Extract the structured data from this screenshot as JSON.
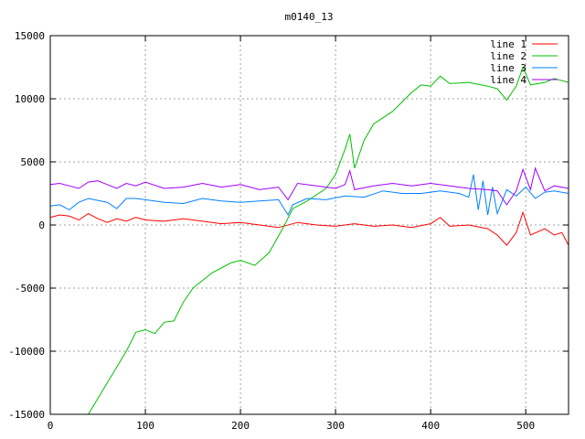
{
  "chart_data": {
    "type": "line",
    "title": "m0140_13",
    "xlabel": "",
    "ylabel": "",
    "xlim": [
      0,
      545
    ],
    "ylim": [
      -15000,
      15000
    ],
    "grid": true,
    "legend_position": "top-right",
    "x_ticks": [
      0,
      100,
      200,
      300,
      400,
      500
    ],
    "y_ticks": [
      -15000,
      -10000,
      -5000,
      0,
      5000,
      10000,
      15000
    ],
    "x_tick_labels": [
      "0",
      "100",
      "200",
      "300",
      "400",
      "500"
    ],
    "y_tick_labels": [
      "-15000",
      "-10000",
      "-5000",
      "0",
      "5000",
      "10000",
      "15000"
    ],
    "series": [
      {
        "name": "line 1",
        "color": "#ff0000",
        "points": [
          [
            0,
            600
          ],
          [
            10,
            800
          ],
          [
            20,
            700
          ],
          [
            30,
            400
          ],
          [
            40,
            900
          ],
          [
            50,
            500
          ],
          [
            60,
            200
          ],
          [
            70,
            500
          ],
          [
            80,
            300
          ],
          [
            90,
            600
          ],
          [
            100,
            400
          ],
          [
            120,
            300
          ],
          [
            140,
            500
          ],
          [
            160,
            300
          ],
          [
            180,
            100
          ],
          [
            200,
            200
          ],
          [
            220,
            0
          ],
          [
            240,
            -200
          ],
          [
            260,
            200
          ],
          [
            280,
            0
          ],
          [
            300,
            -100
          ],
          [
            320,
            100
          ],
          [
            340,
            -100
          ],
          [
            360,
            0
          ],
          [
            380,
            -200
          ],
          [
            400,
            100
          ],
          [
            410,
            600
          ],
          [
            420,
            -100
          ],
          [
            440,
            0
          ],
          [
            460,
            -300
          ],
          [
            470,
            -800
          ],
          [
            480,
            -1600
          ],
          [
            490,
            -600
          ],
          [
            497,
            1000
          ],
          [
            505,
            -800
          ],
          [
            520,
            -300
          ],
          [
            530,
            -800
          ],
          [
            538,
            -600
          ],
          [
            545,
            -1600
          ]
        ]
      },
      {
        "name": "line 2",
        "color": "#00c000",
        "points": [
          [
            40,
            -15000
          ],
          [
            60,
            -12500
          ],
          [
            80,
            -10000
          ],
          [
            90,
            -8500
          ],
          [
            100,
            -8300
          ],
          [
            110,
            -8600
          ],
          [
            120,
            -7700
          ],
          [
            130,
            -7600
          ],
          [
            140,
            -6100
          ],
          [
            150,
            -5000
          ],
          [
            170,
            -3800
          ],
          [
            190,
            -3000
          ],
          [
            200,
            -2800
          ],
          [
            215,
            -3200
          ],
          [
            230,
            -2200
          ],
          [
            245,
            -200
          ],
          [
            255,
            1300
          ],
          [
            270,
            1900
          ],
          [
            290,
            2900
          ],
          [
            300,
            4000
          ],
          [
            310,
            6000
          ],
          [
            315,
            7200
          ],
          [
            320,
            4500
          ],
          [
            330,
            6700
          ],
          [
            340,
            8000
          ],
          [
            350,
            8500
          ],
          [
            360,
            9000
          ],
          [
            380,
            10500
          ],
          [
            390,
            11100
          ],
          [
            400,
            11000
          ],
          [
            410,
            11800
          ],
          [
            420,
            11200
          ],
          [
            440,
            11300
          ],
          [
            460,
            11000
          ],
          [
            470,
            10800
          ],
          [
            480,
            9900
          ],
          [
            490,
            11000
          ],
          [
            497,
            12500
          ],
          [
            505,
            11100
          ],
          [
            520,
            11300
          ],
          [
            530,
            11600
          ],
          [
            545,
            11300
          ]
        ]
      },
      {
        "name": "line 3",
        "color": "#0080ff",
        "points": [
          [
            0,
            1500
          ],
          [
            10,
            1600
          ],
          [
            20,
            1200
          ],
          [
            30,
            1800
          ],
          [
            40,
            2100
          ],
          [
            60,
            1800
          ],
          [
            70,
            1300
          ],
          [
            80,
            2100
          ],
          [
            90,
            2100
          ],
          [
            100,
            2000
          ],
          [
            120,
            1800
          ],
          [
            140,
            1700
          ],
          [
            160,
            2100
          ],
          [
            180,
            1900
          ],
          [
            200,
            1800
          ],
          [
            220,
            1900
          ],
          [
            240,
            2000
          ],
          [
            250,
            800
          ],
          [
            255,
            1600
          ],
          [
            270,
            2100
          ],
          [
            290,
            2000
          ],
          [
            310,
            2300
          ],
          [
            330,
            2200
          ],
          [
            350,
            2700
          ],
          [
            370,
            2500
          ],
          [
            390,
            2500
          ],
          [
            410,
            2700
          ],
          [
            430,
            2500
          ],
          [
            440,
            2200
          ],
          [
            445,
            4000
          ],
          [
            450,
            1200
          ],
          [
            455,
            3500
          ],
          [
            460,
            800
          ],
          [
            465,
            3000
          ],
          [
            470,
            900
          ],
          [
            480,
            2800
          ],
          [
            490,
            2300
          ],
          [
            500,
            3000
          ],
          [
            510,
            2100
          ],
          [
            520,
            2600
          ],
          [
            530,
            2700
          ],
          [
            545,
            2500
          ]
        ]
      },
      {
        "name": "line 4",
        "color": "#a000ff",
        "points": [
          [
            0,
            3200
          ],
          [
            10,
            3300
          ],
          [
            20,
            3100
          ],
          [
            30,
            2900
          ],
          [
            40,
            3400
          ],
          [
            50,
            3500
          ],
          [
            60,
            3200
          ],
          [
            70,
            2900
          ],
          [
            80,
            3300
          ],
          [
            90,
            3100
          ],
          [
            100,
            3400
          ],
          [
            120,
            2900
          ],
          [
            140,
            3000
          ],
          [
            160,
            3300
          ],
          [
            180,
            3000
          ],
          [
            200,
            3200
          ],
          [
            220,
            2800
          ],
          [
            240,
            3000
          ],
          [
            250,
            2000
          ],
          [
            260,
            3300
          ],
          [
            280,
            3100
          ],
          [
            300,
            2900
          ],
          [
            310,
            3200
          ],
          [
            315,
            4300
          ],
          [
            320,
            2800
          ],
          [
            340,
            3100
          ],
          [
            360,
            3300
          ],
          [
            380,
            3100
          ],
          [
            400,
            3300
          ],
          [
            420,
            3100
          ],
          [
            440,
            2900
          ],
          [
            460,
            2800
          ],
          [
            470,
            2700
          ],
          [
            480,
            1600
          ],
          [
            490,
            2700
          ],
          [
            497,
            4400
          ],
          [
            505,
            2800
          ],
          [
            510,
            4500
          ],
          [
            520,
            2700
          ],
          [
            530,
            3100
          ],
          [
            545,
            2900
          ]
        ]
      }
    ]
  }
}
